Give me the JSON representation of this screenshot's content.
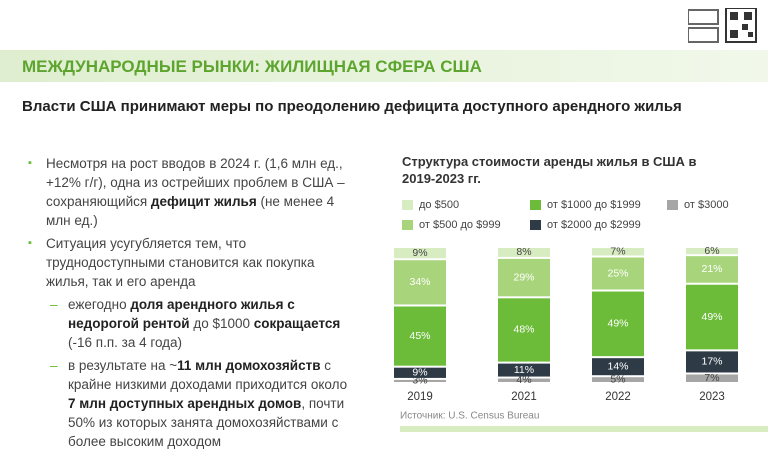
{
  "header": {
    "title": "МЕЖДУНАРОДНЫЕ РЫНКИ: ЖИЛИЩНАЯ СФЕРА США"
  },
  "subtitle": "Власти США принимают меры по преодолению дефицита доступного арендного жилья",
  "bullets": [
    {
      "runs": [
        "Несмотря на рост вводов в 2024 г. (1,6 млн ед., +12% г/г), одна из острейших проблем в США – сохраняющийся ",
        "дефицит жилья",
        " (не менее 4 млн ед.)"
      ]
    },
    {
      "runs": [
        "Ситуация усугубляется тем, что труднодоступными становится как покупка жилья, так и его аренда"
      ],
      "sub": [
        {
          "runs": [
            "ежегодно ",
            "доля арендного жилья с недорогой рентой",
            " до $1000 ",
            "сокращается",
            " (-16 п.п. за 4 года)"
          ]
        },
        {
          "runs": [
            "в результате на ~",
            "11 млн домохозяйств",
            " с крайне низкими доходами приходится около ",
            "7 млн доступных арендных домов",
            ", почти 50% из которых занята домохозяйствами с более высоким доходом"
          ]
        }
      ]
    }
  ],
  "chart_data": {
    "type": "stacked-bar",
    "title": "Структура стоимости аренды жилья в США в 2019-2023 гг.",
    "source": "Источник: U.S. Census Bureau",
    "categories": [
      "2019",
      "2021",
      "2022",
      "2023"
    ],
    "series": [
      {
        "name": "до $500",
        "color": "#d8ecc2",
        "values": [
          9,
          8,
          7,
          6
        ],
        "value_labels": [
          "9%",
          "8%",
          "7%",
          "6%"
        ]
      },
      {
        "name": "от $500 до $999",
        "color": "#a8d57c",
        "values": [
          34,
          29,
          25,
          21
        ],
        "value_labels": [
          "34%",
          "29%",
          "25%",
          "21%"
        ]
      },
      {
        "name": "от $1000 до $1999",
        "color": "#6cbc3a",
        "values": [
          45,
          48,
          49,
          49
        ],
        "value_labels": [
          "45%",
          "48%",
          "49%",
          "49%"
        ]
      },
      {
        "name": "от $2000 до $2999",
        "color": "#2e3b47",
        "values": [
          9,
          11,
          14,
          17
        ],
        "value_labels": [
          "9%",
          "11%",
          "14%",
          "17%"
        ]
      },
      {
        "name": "от $3000",
        "color": "#a6a6a6",
        "values": [
          3,
          4,
          5,
          7
        ],
        "value_labels": [
          "3%",
          "4%",
          "5%",
          "7%"
        ]
      }
    ]
  }
}
